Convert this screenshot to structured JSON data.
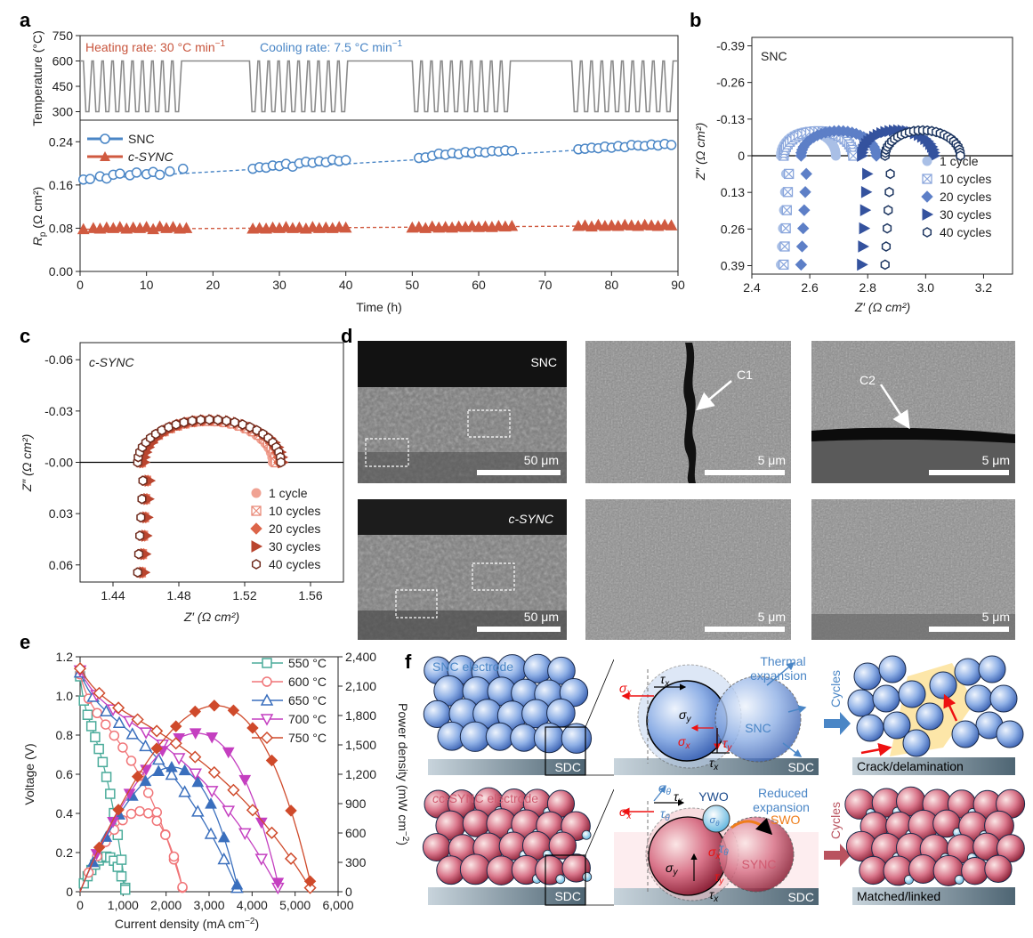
{
  "panels": {
    "a": "a",
    "b": "b",
    "c": "c",
    "d": "d",
    "e": "e",
    "f": "f"
  },
  "chart_data": [
    {
      "id": "a-temp",
      "type": "line",
      "ylabel": "Temperature (°C)",
      "ylim": [
        250,
        750
      ],
      "yticks": [
        "750",
        "600",
        "450",
        "300"
      ],
      "heating_label": "Heating rate: 30 °C min",
      "cooling_label": "Cooling rate: 7.5 °C min",
      "rate_unit_exp": "−1",
      "cycle_blocks": [
        {
          "start": 0.5,
          "end": 15.5,
          "cycles": 10
        },
        {
          "start": 25.5,
          "end": 40.5,
          "cycles": 10
        },
        {
          "start": 50,
          "end": 65,
          "cycles": 10
        },
        {
          "start": 74,
          "end": 89.5,
          "cycles": 10
        }
      ],
      "high_temp": 600,
      "low_temp": 300,
      "color": "#8a8a8a",
      "heat_color": "#c8553d",
      "cool_color": "#4a86c6"
    },
    {
      "id": "a-rp",
      "type": "scatter",
      "xlabel": "Time (h)",
      "ylabel": "R",
      "ylabel_sub": "p",
      "ylabel_unit": " (Ω cm²)",
      "xlim": [
        0,
        90
      ],
      "ylim": [
        0,
        0.28
      ],
      "xticks": [
        "0",
        "10",
        "20",
        "30",
        "40",
        "50",
        "60",
        "70",
        "80",
        "90"
      ],
      "yticks": [
        "0.00",
        "0.08",
        "0.16",
        "0.24"
      ],
      "series": [
        {
          "name": "SNC",
          "marker": "circle",
          "color": "#4a86c6",
          "points": [
            [
              0.5,
              0.17
            ],
            [
              1.5,
              0.171
            ],
            [
              3,
              0.176
            ],
            [
              4,
              0.172
            ],
            [
              5,
              0.179
            ],
            [
              6,
              0.181
            ],
            [
              7.5,
              0.178
            ],
            [
              8.5,
              0.183
            ],
            [
              10,
              0.18
            ],
            [
              11,
              0.184
            ],
            [
              12,
              0.179
            ],
            [
              13.5,
              0.185
            ],
            [
              15.5,
              0.19
            ],
            [
              26,
              0.19
            ],
            [
              27,
              0.193
            ],
            [
              28,
              0.192
            ],
            [
              29,
              0.196
            ],
            [
              30,
              0.195
            ],
            [
              31,
              0.199
            ],
            [
              32,
              0.194
            ],
            [
              33,
              0.2
            ],
            [
              34,
              0.203
            ],
            [
              35,
              0.201
            ],
            [
              36,
              0.204
            ],
            [
              37,
              0.202
            ],
            [
              38,
              0.207
            ],
            [
              39,
              0.204
            ],
            [
              40,
              0.206
            ],
            [
              51,
              0.21
            ],
            [
              52,
              0.211
            ],
            [
              53,
              0.214
            ],
            [
              54,
              0.218
            ],
            [
              55,
              0.216
            ],
            [
              56,
              0.219
            ],
            [
              57,
              0.217
            ],
            [
              58,
              0.221
            ],
            [
              59,
              0.219
            ],
            [
              60,
              0.222
            ],
            [
              61,
              0.22
            ],
            [
              62,
              0.223
            ],
            [
              63,
              0.222
            ],
            [
              64,
              0.224
            ],
            [
              65,
              0.223
            ],
            [
              75,
              0.226
            ],
            [
              76,
              0.227
            ],
            [
              77,
              0.229
            ],
            [
              78,
              0.228
            ],
            [
              79,
              0.231
            ],
            [
              80,
              0.229
            ],
            [
              81,
              0.232
            ],
            [
              82,
              0.23
            ],
            [
              83,
              0.234
            ],
            [
              84,
              0.233
            ],
            [
              85,
              0.232
            ],
            [
              86,
              0.235
            ],
            [
              87,
              0.233
            ],
            [
              88,
              0.236
            ],
            [
              89,
              0.234
            ]
          ],
          "trend": [
            [
              0,
              0.17
            ],
            [
              89.5,
              0.235
            ]
          ]
        },
        {
          "name": "c-SYNC",
          "marker": "triangle",
          "color": "#d05a40",
          "points": [
            [
              0.5,
              0.078
            ],
            [
              2,
              0.08
            ],
            [
              3,
              0.079
            ],
            [
              4,
              0.081
            ],
            [
              5,
              0.08
            ],
            [
              6,
              0.082
            ],
            [
              7,
              0.079
            ],
            [
              8,
              0.081
            ],
            [
              9,
              0.08
            ],
            [
              10,
              0.082
            ],
            [
              11,
              0.078
            ],
            [
              12,
              0.083
            ],
            [
              13,
              0.08
            ],
            [
              14,
              0.082
            ],
            [
              15,
              0.079
            ],
            [
              16,
              0.08
            ],
            [
              26,
              0.079
            ],
            [
              27,
              0.08
            ],
            [
              28,
              0.079
            ],
            [
              29,
              0.081
            ],
            [
              30,
              0.08
            ],
            [
              31,
              0.082
            ],
            [
              32,
              0.08
            ],
            [
              33,
              0.081
            ],
            [
              34,
              0.079
            ],
            [
              35,
              0.082
            ],
            [
              36,
              0.08
            ],
            [
              37,
              0.081
            ],
            [
              38,
              0.08
            ],
            [
              39,
              0.082
            ],
            [
              40,
              0.081
            ],
            [
              50,
              0.081
            ],
            [
              51,
              0.082
            ],
            [
              52,
              0.08
            ],
            [
              53,
              0.083
            ],
            [
              54,
              0.081
            ],
            [
              55,
              0.082
            ],
            [
              56,
              0.081
            ],
            [
              57,
              0.083
            ],
            [
              58,
              0.082
            ],
            [
              59,
              0.084
            ],
            [
              60,
              0.082
            ],
            [
              61,
              0.083
            ],
            [
              62,
              0.082
            ],
            [
              63,
              0.084
            ],
            [
              64,
              0.083
            ],
            [
              65,
              0.084
            ],
            [
              75,
              0.084
            ],
            [
              76,
              0.085
            ],
            [
              77,
              0.083
            ],
            [
              78,
              0.086
            ],
            [
              79,
              0.084
            ],
            [
              80,
              0.085
            ],
            [
              81,
              0.084
            ],
            [
              82,
              0.086
            ],
            [
              83,
              0.085
            ],
            [
              84,
              0.084
            ],
            [
              85,
              0.086
            ],
            [
              86,
              0.085
            ],
            [
              87,
              0.084
            ],
            [
              88,
              0.086
            ],
            [
              89,
              0.085
            ]
          ],
          "trend": [
            [
              0,
              0.078
            ],
            [
              89.5,
              0.085
            ]
          ]
        }
      ],
      "legend": [
        "SNC",
        "c-SYNC"
      ]
    },
    {
      "id": "b",
      "type": "scatter",
      "title": "SNC",
      "xlabel": "Z′ (Ω cm²)",
      "ylabel": "Z″ (Ω cm²)",
      "xlim": [
        2.4,
        3.3
      ],
      "ylim": [
        -0.42,
        0.42
      ],
      "y_inverted": true,
      "xticks": [
        "2.4",
        "2.6",
        "2.8",
        "3.0",
        "3.2"
      ],
      "yticks": [
        "-0.39",
        "-0.26",
        "-0.13",
        "0",
        "0.13",
        "0.26",
        "0.39"
      ],
      "series": [
        {
          "name": "1 cycle",
          "marker": "circle-filled",
          "color": "#a9bfe6",
          "R0": 2.5,
          "R1": 2.69,
          "peak": -0.085
        },
        {
          "name": "10 cycles",
          "marker": "square-x",
          "color": "#8aa6dc",
          "R0": 2.51,
          "R1": 2.75,
          "peak": -0.087
        },
        {
          "name": "20 cycles",
          "marker": "diamond",
          "color": "#5d7fc7",
          "R0": 2.57,
          "R1": 2.83,
          "peak": -0.088
        },
        {
          "name": "30 cycles",
          "marker": "triangle-right",
          "color": "#34529e",
          "R0": 2.78,
          "R1": 3.03,
          "peak": -0.09
        },
        {
          "name": "40 cycles",
          "marker": "hexagon",
          "color": "#1c3560",
          "R0": 2.86,
          "R1": 3.12,
          "peak": -0.09
        }
      ],
      "legend": [
        "1 cycle",
        "10 cycles",
        "20 cycles",
        "30 cycles",
        "40 cycles"
      ]
    },
    {
      "id": "c",
      "type": "scatter",
      "title": "c-SYNC",
      "xlabel": "Z′ (Ω cm²)",
      "ylabel": "Z″ (Ω cm²)",
      "xlim": [
        1.42,
        1.58
      ],
      "ylim": [
        -0.07,
        0.07
      ],
      "y_inverted": true,
      "xticks": [
        "1.44",
        "1.48",
        "1.52",
        "1.56"
      ],
      "yticks": [
        "-0.06",
        "-0.03",
        "-0.00",
        "0.03",
        "0.06"
      ],
      "series": [
        {
          "name": "1 cycle",
          "marker": "circle-filled",
          "color": "#f0a293",
          "R0": 1.457,
          "R1": 1.537,
          "peak": -0.024
        },
        {
          "name": "10 cycles",
          "marker": "square-x",
          "color": "#e98a78",
          "R0": 1.457,
          "R1": 1.539,
          "peak": -0.0243
        },
        {
          "name": "20 cycles",
          "marker": "diamond",
          "color": "#dc6549",
          "R0": 1.458,
          "R1": 1.541,
          "peak": -0.0246
        },
        {
          "name": "30 cycles",
          "marker": "triangle-right",
          "color": "#b9452f",
          "R0": 1.459,
          "R1": 1.543,
          "peak": -0.0248
        },
        {
          "name": "40 cycles",
          "marker": "hexagon",
          "color": "#6e2a1c",
          "R0": 1.455,
          "R1": 1.542,
          "peak": -0.025
        }
      ],
      "legend": [
        "1 cycle",
        "10 cycles",
        "20 cycles",
        "30 cycles",
        "40 cycles"
      ]
    },
    {
      "id": "e",
      "type": "line",
      "xlabel": "Current density (mA cm",
      "xlabel_exp": "−2",
      "xlabel_end": ")",
      "ylabel": "Voltage (V)",
      "y2label": "Power density (mW cm",
      "y2label_exp": "−2",
      "y2label_end": ")",
      "xlim": [
        0,
        6000
      ],
      "ylim": [
        0,
        1.2
      ],
      "y2lim": [
        0,
        2400
      ],
      "xticks": [
        "0",
        "1,000",
        "2,000",
        "3,000",
        "4,000",
        "5,000",
        "6,000"
      ],
      "yticks": [
        "0",
        "0.2",
        "0.4",
        "0.6",
        "0.8",
        "1.0",
        "1.2"
      ],
      "y2ticks": [
        "0",
        "300",
        "600",
        "900",
        "1,200",
        "1,500",
        "1,800",
        "2,100",
        "2,400"
      ],
      "series": [
        {
          "name": "550 °C",
          "marker": "square",
          "color": "#4aab9a",
          "ocv": 1.1,
          "imax": 1050,
          "shape": 0.55
        },
        {
          "name": "600 °C",
          "marker": "circle",
          "color": "#f07578",
          "ocv": 1.11,
          "imax": 2380,
          "shape": 0.75
        },
        {
          "name": "650 °C",
          "marker": "triangle",
          "color": "#3a6fbd",
          "ocv": 1.12,
          "imax": 3650,
          "shape": 0.85
        },
        {
          "name": "700 °C",
          "marker": "triangle-down",
          "color": "#c43fc0",
          "ocv": 1.13,
          "imax": 4600,
          "shape": 0.95
        },
        {
          "name": "750 °C",
          "marker": "diamond",
          "color": "#cf4a2b",
          "ocv": 1.14,
          "imax": 5350,
          "shape": 1.05
        }
      ],
      "legend": [
        "550 °C",
        "600 °C",
        "650 °C",
        "700 °C",
        "750 °C"
      ]
    }
  ],
  "sem": {
    "snc_label": "SNC",
    "csync_label": "c-SYNC",
    "scale_50": "50 μm",
    "scale_5": "5 μm",
    "crack_1": "C1",
    "crack_2": "C2"
  },
  "schematic": {
    "snc_electrode": "SNC electrode",
    "csync_electrode": "c-SYNC electrode",
    "sdc": "SDC",
    "thermal": "Thermal",
    "expansion": "expansion",
    "reduced": "Reduced",
    "reduced_expansion": "expansion",
    "snc": "SNC",
    "sync": "SYNC",
    "ywo": "YWO",
    "swo": "SWO",
    "cycles": "Cycles",
    "crack_delam": "Crack/delamination",
    "matched": "Matched/linked",
    "sigma_x": "σ",
    "sigma_y": "σ",
    "tau_x": "τ",
    "tau_y": "τ",
    "sigma_theta": "σ",
    "tau_theta": "τ",
    "sub_x": "x",
    "sub_y": "y",
    "sub_theta": "θ"
  }
}
